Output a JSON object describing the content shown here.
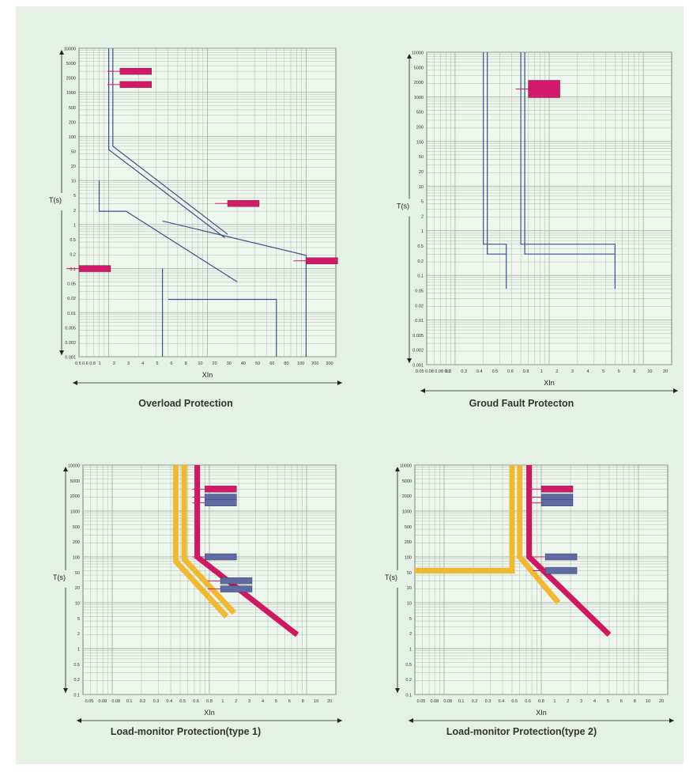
{
  "colors": {
    "background": "#e4f1e4",
    "grid": "#9aa39a",
    "curve": "#3b4e8c",
    "magenta": "#d01862",
    "yellow": "#f2b830",
    "label_magenta": "#d4186a",
    "label_blue": "#5d6aa6"
  },
  "captions": [
    "Overload Protection",
    "Groud Fault Protecton",
    "Load-monitor Protection(type 1)",
    "Load-monitor Protection(type 2)"
  ],
  "chart_data": [
    {
      "type": "line",
      "title": "Overload Protection",
      "xlabel": "XIn",
      "ylabel": "T(s)",
      "x_scale": "log",
      "y_scale": "log",
      "xlim": [
        0.5,
        200
      ],
      "ylim": [
        0.001,
        10000
      ],
      "x_ticks": [
        "0.5 0.6 0.8",
        "1",
        "2",
        "3",
        "4",
        "5",
        "6",
        "8",
        "10",
        "20",
        "30",
        "40",
        "50",
        "60",
        "80",
        "100",
        "200",
        "300"
      ],
      "y_ticks": [
        "10000",
        "5000",
        "2000",
        "1000",
        "500",
        "200",
        "100",
        "50",
        "20",
        "10",
        "5",
        "2",
        "1",
        "0.5",
        "0.2",
        "0.1",
        "0.05",
        "0.02",
        "0.01",
        "0.005",
        "0.002",
        "0.001"
      ],
      "series": [
        {
          "values": [
            [
              1,
              10000
            ],
            [
              1,
              50
            ],
            [
              15,
              0.5
            ]
          ]
        },
        {
          "values": [
            [
              1.1,
              10000
            ],
            [
              1.1,
              60
            ],
            [
              16,
              0.6
            ]
          ]
        },
        {
          "values": [
            [
              0.8,
              10
            ],
            [
              0.8,
              2
            ],
            [
              1.5,
              2
            ],
            [
              20,
              0.05
            ]
          ]
        },
        {
          "values": [
            [
              3.5,
              1.2
            ],
            [
              100,
              0.2
            ],
            [
              100,
              0.001
            ]
          ]
        },
        {
          "values": [
            [
              3.5,
              0.1
            ],
            [
              3.5,
              0.001
            ]
          ]
        },
        {
          "values": [
            [
              4,
              0.02
            ],
            [
              50,
              0.02
            ],
            [
              50,
              0.001
            ]
          ]
        }
      ],
      "annotations": [
        "",
        "",
        "",
        "",
        ""
      ]
    },
    {
      "type": "line",
      "title": "Groud Fault Protecton",
      "xlabel": "XIn",
      "ylabel": "T(s)",
      "x_scale": "log",
      "y_scale": "log",
      "xlim": [
        0.05,
        20
      ],
      "ylim": [
        0.001,
        10000
      ],
      "x_ticks": [
        "0.05 0.08 0.08 0.1",
        "0.2",
        "0.3",
        "0.4",
        "0.5",
        "0.6",
        "0.8",
        "1",
        "2",
        "3",
        "4",
        "5",
        "6",
        "8",
        "10",
        "20"
      ],
      "y_ticks": [
        "10000",
        "5000",
        "2000",
        "1000",
        "500",
        "200",
        "100",
        "50",
        "20",
        "10",
        "5",
        "2",
        "1",
        "0.5",
        "0.2",
        "0.1",
        "0.05",
        "0.02",
        "0.01",
        "0.005",
        "0.002",
        "0.001"
      ],
      "series": [
        {
          "values": [
            [
              0.2,
              10000
            ],
            [
              0.2,
              0.5
            ],
            [
              0.35,
              0.5
            ],
            [
              0.35,
              0.05
            ]
          ]
        },
        {
          "values": [
            [
              0.22,
              10000
            ],
            [
              0.22,
              0.3
            ],
            [
              0.35,
              0.3
            ]
          ]
        },
        {
          "values": [
            [
              0.5,
              10000
            ],
            [
              0.5,
              0.5
            ],
            [
              5,
              0.5
            ],
            [
              5,
              0.05
            ]
          ]
        },
        {
          "values": [
            [
              0.55,
              10000
            ],
            [
              0.55,
              0.3
            ],
            [
              5,
              0.3
            ]
          ]
        }
      ],
      "annotations": [
        ""
      ]
    },
    {
      "type": "line",
      "title": "Load-monitor Protection(type 1)",
      "xlabel": "XIn",
      "ylabel": "T(s)",
      "x_scale": "log",
      "y_scale": "log",
      "xlim": [
        0.05,
        20
      ],
      "ylim": [
        0.1,
        10000
      ],
      "x_ticks": [
        "0.05",
        "0.08",
        "0.08",
        "0.1",
        "0.2",
        "0.3",
        "0.4",
        "0.5",
        "0.6",
        "0.8",
        "1",
        "2",
        "3",
        "4",
        "5",
        "6",
        "8",
        "10",
        "20"
      ],
      "y_ticks": [
        "10000",
        "5000",
        "2000",
        "1000",
        "500",
        "200",
        "100",
        "50",
        "20",
        "10",
        "5",
        "2",
        "1",
        "0.5",
        "0.2",
        "0.1"
      ],
      "series": [
        {
          "values": [
            [
              0.45,
              10000
            ],
            [
              0.45,
              80
            ],
            [
              1.5,
              5
            ]
          ]
        },
        {
          "values": [
            [
              0.55,
              10000
            ],
            [
              0.55,
              90
            ],
            [
              1.8,
              6
            ]
          ]
        },
        {
          "values": [
            [
              0.75,
              10000
            ],
            [
              0.75,
              100
            ],
            [
              8,
              2
            ]
          ]
        }
      ],
      "annotations": [
        "",
        "",
        "",
        "",
        "",
        ""
      ]
    },
    {
      "type": "line",
      "title": "Load-monitor Protection(type 2)",
      "xlabel": "XIn",
      "ylabel": "T(s)",
      "x_scale": "log",
      "y_scale": "log",
      "xlim": [
        0.05,
        20
      ],
      "ylim": [
        0.1,
        10000
      ],
      "x_ticks": [
        "0.05",
        "0.08",
        "0.08",
        "0.1",
        "0.2",
        "0.3",
        "0.4",
        "0.5",
        "0.6",
        "0.8",
        "1",
        "2",
        "3",
        "4",
        "5",
        "6",
        "8",
        "10",
        "20"
      ],
      "y_ticks": [
        "10000",
        "5000",
        "2000",
        "1000",
        "500",
        "200",
        "100",
        "50",
        "20",
        "10",
        "5",
        "2",
        "1",
        "0.5",
        "0.2",
        "0.1"
      ],
      "series": [
        {
          "values": [
            [
              0.05,
              50
            ],
            [
              0.5,
              50
            ],
            [
              0.5,
              10000
            ]
          ]
        },
        {
          "values": [
            [
              0.6,
              10000
            ],
            [
              0.6,
              100
            ],
            [
              1.5,
              10
            ]
          ]
        },
        {
          "values": [
            [
              0.75,
              10000
            ],
            [
              0.75,
              100
            ],
            [
              5,
              2
            ]
          ]
        }
      ],
      "annotations": [
        "",
        "",
        "",
        "",
        ""
      ]
    }
  ]
}
